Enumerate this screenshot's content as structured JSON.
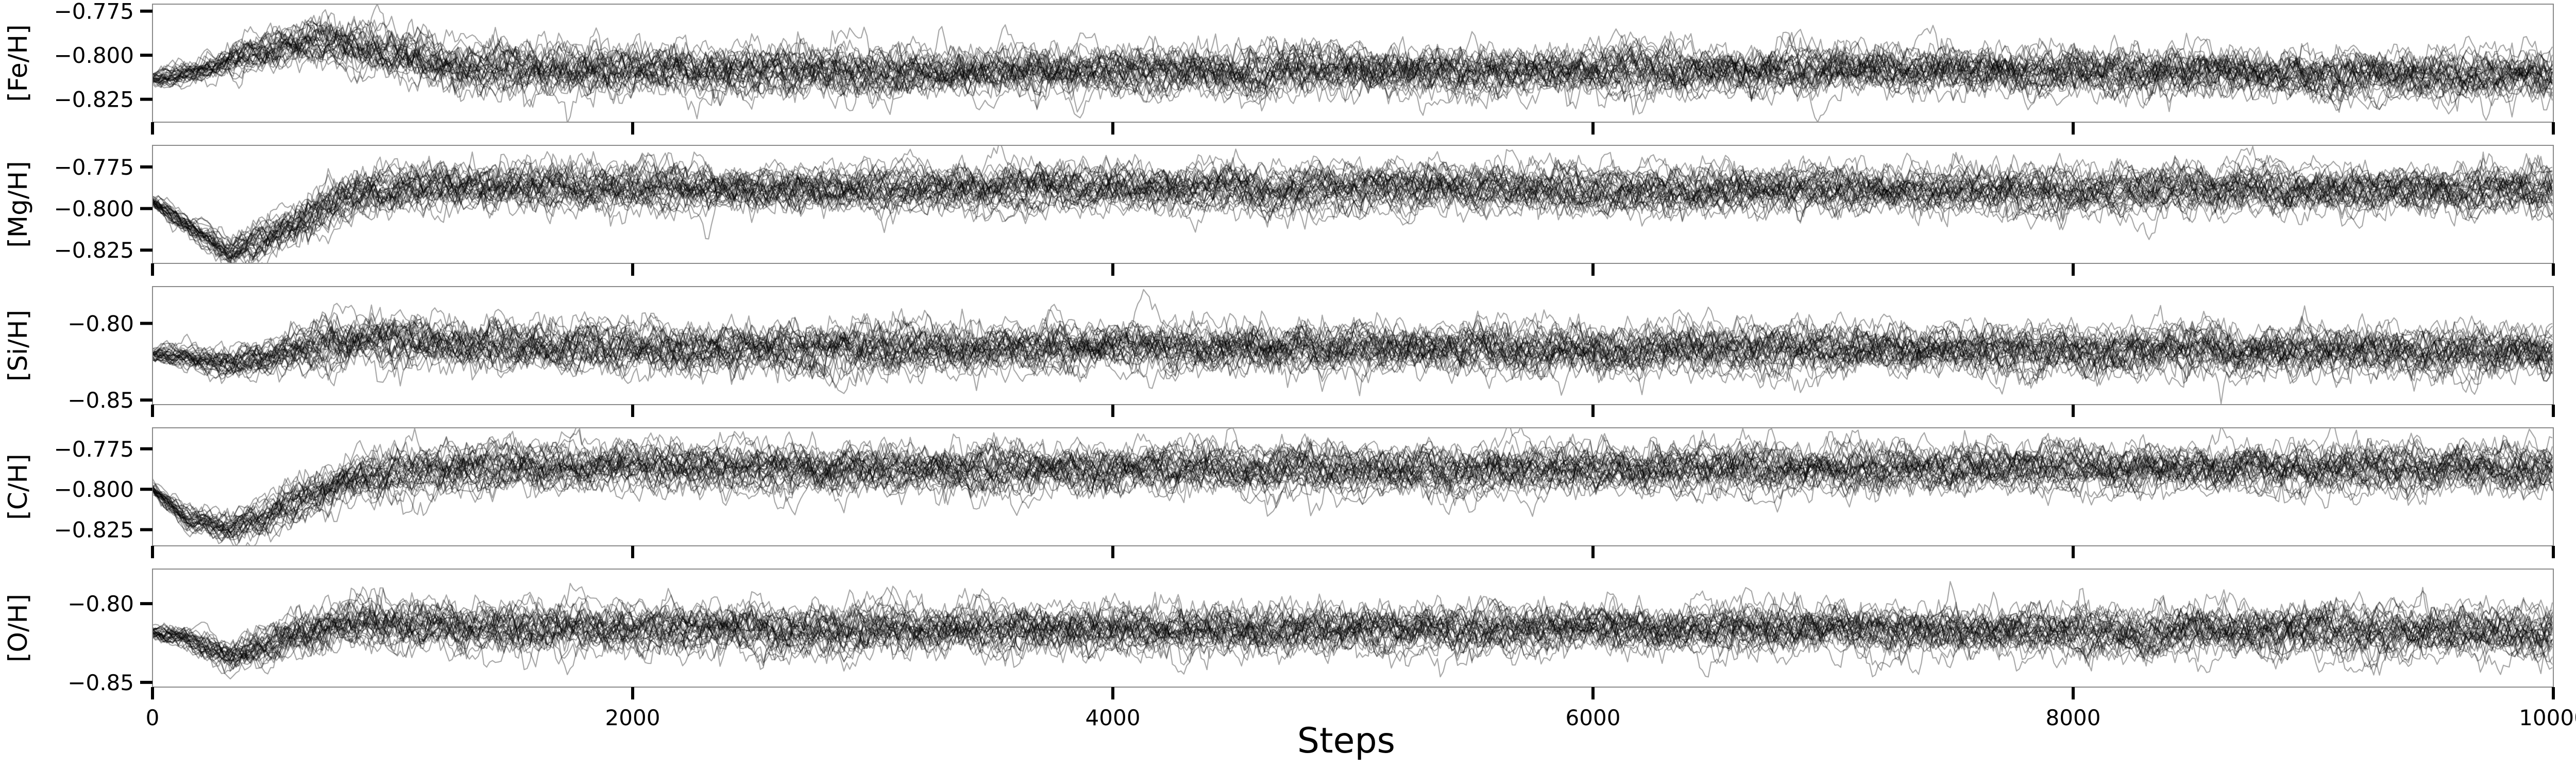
{
  "chart_data": {
    "type": "line",
    "description_of_series": "MCMC walker chains",
    "xlabel": "Steps",
    "xlim": [
      0,
      10000
    ],
    "xticks": [
      0,
      2000,
      4000,
      6000,
      8000,
      10000
    ],
    "xtick_labels": [
      "0",
      "2000",
      "4000",
      "6000",
      "8000",
      "10000"
    ],
    "n_walkers": 32,
    "line_color": "#000000",
    "panels": [
      {
        "ylabel": "[Fe/H]",
        "ylim": [
          -0.838,
          -0.771
        ],
        "yticks": [
          -0.775,
          -0.8,
          -0.825
        ],
        "ytick_labels": [
          "−0.775",
          "−0.800",
          "−0.825"
        ],
        "trend": [
          [
            0,
            -0.813
          ],
          [
            150,
            -0.81
          ],
          [
            400,
            -0.8
          ],
          [
            650,
            -0.792
          ],
          [
            900,
            -0.797
          ],
          [
            1300,
            -0.806
          ],
          [
            2500,
            -0.809
          ],
          [
            5000,
            -0.809
          ],
          [
            7500,
            -0.808
          ],
          [
            10000,
            -0.812
          ]
        ],
        "noise_sd": 0.0065
      },
      {
        "ylabel": "[Mg/H]",
        "ylim": [
          -0.833,
          -0.762
        ],
        "yticks": [
          -0.775,
          -0.8,
          -0.825
        ],
        "ytick_labels": [
          "−0.775",
          "−0.800",
          "−0.825"
        ],
        "trend": [
          [
            0,
            -0.795
          ],
          [
            150,
            -0.812
          ],
          [
            320,
            -0.825
          ],
          [
            550,
            -0.812
          ],
          [
            850,
            -0.79
          ],
          [
            1300,
            -0.786
          ],
          [
            2500,
            -0.787
          ],
          [
            5000,
            -0.787
          ],
          [
            7500,
            -0.788
          ],
          [
            10000,
            -0.788
          ]
        ],
        "noise_sd": 0.0065
      },
      {
        "ylabel": "[Si/H]",
        "ylim": [
          -0.853,
          -0.776
        ],
        "yticks": [
          -0.8,
          -0.85
        ],
        "ytick_labels": [
          "−0.80",
          "−0.85"
        ],
        "trend": [
          [
            0,
            -0.82
          ],
          [
            150,
            -0.821
          ],
          [
            330,
            -0.826
          ],
          [
            600,
            -0.818
          ],
          [
            850,
            -0.81
          ],
          [
            1300,
            -0.813
          ],
          [
            2500,
            -0.816
          ],
          [
            5000,
            -0.816
          ],
          [
            7500,
            -0.816
          ],
          [
            10000,
            -0.818
          ]
        ],
        "noise_sd": 0.0075
      },
      {
        "ylabel": "[C/H]",
        "ylim": [
          -0.835,
          -0.762
        ],
        "yticks": [
          -0.775,
          -0.8,
          -0.825
        ],
        "ytick_labels": [
          "−0.775",
          "−0.800",
          "−0.825"
        ],
        "trend": [
          [
            0,
            -0.8
          ],
          [
            150,
            -0.818
          ],
          [
            320,
            -0.826
          ],
          [
            550,
            -0.812
          ],
          [
            850,
            -0.792
          ],
          [
            1300,
            -0.786
          ],
          [
            2500,
            -0.787
          ],
          [
            5000,
            -0.788
          ],
          [
            7500,
            -0.787
          ],
          [
            10000,
            -0.787
          ]
        ],
        "noise_sd": 0.0068
      },
      {
        "ylabel": "[O/H]",
        "ylim": [
          -0.853,
          -0.778
        ],
        "yticks": [
          -0.8,
          -0.85
        ],
        "ytick_labels": [
          "−0.80",
          "−0.85"
        ],
        "trend": [
          [
            0,
            -0.818
          ],
          [
            150,
            -0.823
          ],
          [
            330,
            -0.834
          ],
          [
            600,
            -0.82
          ],
          [
            850,
            -0.812
          ],
          [
            1300,
            -0.815
          ],
          [
            2500,
            -0.817
          ],
          [
            5000,
            -0.817
          ],
          [
            7500,
            -0.817
          ],
          [
            10000,
            -0.818
          ]
        ],
        "noise_sd": 0.0072
      }
    ]
  }
}
